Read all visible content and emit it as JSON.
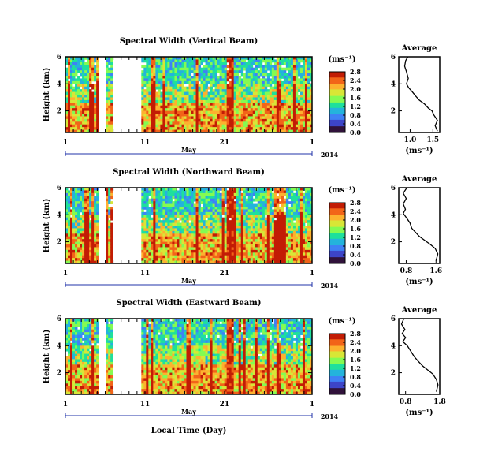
{
  "xlabel": "Local Time (Day)",
  "cbar_ticks": [
    "2.8",
    "2.4",
    "2.0",
    "1.6",
    "1.2",
    "0.8",
    "0.4",
    "0.0"
  ],
  "chart_data": [
    {
      "type": "heatmap",
      "title": "Spectral Width (Vertical Beam)",
      "ylabel": "Height (km)",
      "y_ticks": [
        "6",
        "4",
        "2"
      ],
      "ylim": [
        0.4,
        6
      ],
      "x_ticks": [
        "1",
        "11",
        "21",
        "1"
      ],
      "month_label": "May",
      "year_label": "2014",
      "colorbar_label": "(ms⁻¹)",
      "zlim": [
        0.0,
        2.8
      ],
      "colormap": [
        "#30123b",
        "#3d45c8",
        "#3f81f5",
        "#24b3dc",
        "#1ee09c",
        "#84fb52",
        "#d8e637",
        "#fdb12f",
        "#f26419",
        "#c21c05"
      ],
      "data_gaps_days": [
        [
          5.3,
          6.2
        ],
        [
          7.0,
          10.6
        ]
      ],
      "profile": {
        "title": "Average",
        "xlabel": "(ms⁻¹)",
        "x_ticks": [
          "1.0",
          "1.5"
        ],
        "y_ticks": [
          "6",
          "4",
          "2"
        ],
        "xlim": [
          0.75,
          1.65
        ],
        "ylim": [
          0.4,
          6
        ],
        "points": [
          [
            0.95,
            6.0
          ],
          [
            0.9,
            5.7
          ],
          [
            0.88,
            5.3
          ],
          [
            0.92,
            4.9
          ],
          [
            0.96,
            4.4
          ],
          [
            0.92,
            4.0
          ],
          [
            0.97,
            3.7
          ],
          [
            1.05,
            3.4
          ],
          [
            1.12,
            3.1
          ],
          [
            1.2,
            2.8
          ],
          [
            1.32,
            2.5
          ],
          [
            1.4,
            2.2
          ],
          [
            1.48,
            2.0
          ],
          [
            1.52,
            1.7
          ],
          [
            1.6,
            1.3
          ],
          [
            1.55,
            0.9
          ],
          [
            1.6,
            0.5
          ]
        ]
      }
    },
    {
      "type": "heatmap",
      "title": "Spectral Width (Northward Beam)",
      "ylabel": "Height (km)",
      "y_ticks": [
        "6",
        "4",
        "2"
      ],
      "ylim": [
        0.4,
        6
      ],
      "x_ticks": [
        "1",
        "11",
        "21",
        "1"
      ],
      "month_label": "May",
      "year_label": "2014",
      "colorbar_label": "(ms⁻¹)",
      "zlim": [
        0.0,
        2.8
      ],
      "colormap": [
        "#30123b",
        "#3d45c8",
        "#3f81f5",
        "#24b3dc",
        "#1ee09c",
        "#84fb52",
        "#d8e637",
        "#fdb12f",
        "#f26419",
        "#c21c05"
      ],
      "data_gaps_days": [
        [
          5.3,
          6.2
        ],
        [
          7.0,
          10.6
        ]
      ],
      "profile": {
        "title": "Average",
        "xlabel": "(ms⁻¹)",
        "x_ticks": [
          "0.8",
          "1.6"
        ],
        "y_ticks": [
          "6",
          "4",
          "2"
        ],
        "xlim": [
          0.6,
          1.7
        ],
        "ylim": [
          0.4,
          6
        ],
        "points": [
          [
            0.82,
            6.0
          ],
          [
            0.72,
            5.6
          ],
          [
            0.8,
            5.2
          ],
          [
            0.72,
            4.8
          ],
          [
            0.78,
            4.4
          ],
          [
            0.72,
            4.1
          ],
          [
            0.8,
            3.8
          ],
          [
            0.9,
            3.4
          ],
          [
            0.95,
            3.0
          ],
          [
            1.05,
            2.7
          ],
          [
            1.15,
            2.4
          ],
          [
            1.3,
            2.1
          ],
          [
            1.45,
            1.8
          ],
          [
            1.58,
            1.5
          ],
          [
            1.65,
            1.1
          ],
          [
            1.6,
            0.6
          ]
        ]
      }
    },
    {
      "type": "heatmap",
      "title": "Spectral Width (Eastward Beam)",
      "ylabel": "Height (km)",
      "y_ticks": [
        "6",
        "4",
        "2"
      ],
      "ylim": [
        0.4,
        6
      ],
      "x_ticks": [
        "1",
        "11",
        "21",
        "1"
      ],
      "month_label": "May",
      "year_label": "2014",
      "colorbar_label": "(ms⁻¹)",
      "zlim": [
        0.0,
        2.8
      ],
      "colormap": [
        "#30123b",
        "#3d45c8",
        "#3f81f5",
        "#24b3dc",
        "#1ee09c",
        "#84fb52",
        "#d8e637",
        "#fdb12f",
        "#f26419",
        "#c21c05"
      ],
      "data_gaps_days": [
        [
          5.3,
          6.2
        ],
        [
          7.0,
          10.6
        ]
      ],
      "profile": {
        "title": "Average",
        "xlabel": "(ms⁻¹)",
        "x_ticks": [
          "0.8",
          "1.8"
        ],
        "y_ticks": [
          "6",
          "4",
          "2"
        ],
        "xlim": [
          0.6,
          1.8
        ],
        "ylim": [
          0.4,
          6
        ],
        "points": [
          [
            0.75,
            6.0
          ],
          [
            0.68,
            5.6
          ],
          [
            0.78,
            5.2
          ],
          [
            0.7,
            4.9
          ],
          [
            0.8,
            4.6
          ],
          [
            0.72,
            4.3
          ],
          [
            0.85,
            4.0
          ],
          [
            0.95,
            3.6
          ],
          [
            1.05,
            3.2
          ],
          [
            1.15,
            2.9
          ],
          [
            1.3,
            2.5
          ],
          [
            1.45,
            2.2
          ],
          [
            1.6,
            1.9
          ],
          [
            1.7,
            1.5
          ],
          [
            1.75,
            1.1
          ],
          [
            1.7,
            0.6
          ]
        ]
      }
    }
  ]
}
